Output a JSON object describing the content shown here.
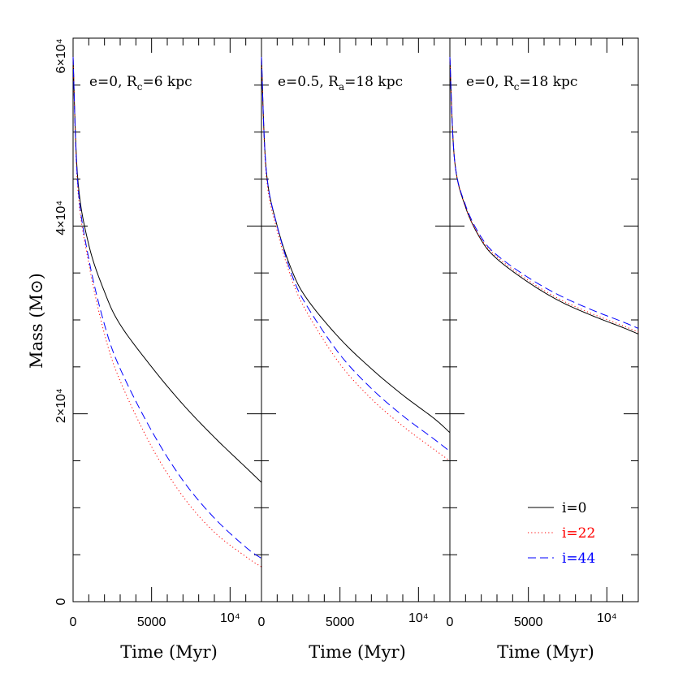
{
  "chart_data": {
    "type": "line",
    "ylabel": "Mass (M⊙)",
    "ylim": [
      0,
      60000
    ],
    "xlim": [
      0,
      12000
    ],
    "y_ticks": [
      {
        "value": 0,
        "label": "0"
      },
      {
        "value": 20000,
        "label": "2×10⁴"
      },
      {
        "value": 40000,
        "label": "4×10⁴"
      },
      {
        "value": 60000,
        "label": "6×10⁴"
      }
    ],
    "x_ticks": [
      {
        "value": 0,
        "label": "0"
      },
      {
        "value": 5000,
        "label": "5000"
      },
      {
        "value": 10000,
        "label": "10⁴"
      }
    ],
    "legend": {
      "placement": "bottom-right",
      "entries": [
        {
          "label": "i=0",
          "color": "#000000",
          "style": "solid"
        },
        {
          "label": "i=22",
          "color": "#ff0000",
          "style": "dotted"
        },
        {
          "label": "i=44",
          "color": "#0000ff",
          "style": "dashed"
        }
      ]
    },
    "panels": [
      {
        "label_main": "e=0, R",
        "label_sub": "c",
        "label_tail": "=6 kpc",
        "xlabel": "Time (Myr)",
        "series": [
          {
            "name": "i=0",
            "x": [
              0,
              300,
              1000,
              2000,
              3000,
              5000,
              7000,
              9000,
              11000,
              12000
            ],
            "y": [
              58000,
              45000,
              38000,
              33000,
              29500,
              25000,
              21000,
              17500,
              14300,
              12700
            ]
          },
          {
            "name": "i=22",
            "x": [
              0,
              300,
              1000,
              2000,
              3000,
              5000,
              7000,
              9000,
              11000,
              12000
            ],
            "y": [
              58000,
              44000,
              36000,
              28500,
              23500,
              16500,
              11200,
              7400,
              4800,
              3700
            ]
          },
          {
            "name": "i=44",
            "x": [
              0,
              300,
              1000,
              2000,
              3000,
              5000,
              7000,
              9000,
              11000,
              12000
            ],
            "y": [
              58000,
              44500,
              36500,
              29500,
              24800,
              18200,
              12900,
              8900,
              5800,
              4600
            ]
          }
        ]
      },
      {
        "label_main": "e=0.5, R",
        "label_sub": "a",
        "label_tail": "=18 kpc",
        "xlabel": "Time (Myr)",
        "series": [
          {
            "name": "i=0",
            "x": [
              0,
              300,
              1000,
              2000,
              3000,
              5000,
              7000,
              9000,
              11000,
              12000
            ],
            "y": [
              58000,
              46000,
              40000,
              35000,
              32000,
              28000,
              24800,
              22000,
              19500,
              18000
            ]
          },
          {
            "name": "i=22",
            "x": [
              0,
              300,
              1000,
              2000,
              3000,
              5000,
              7000,
              9000,
              11000,
              12000
            ],
            "y": [
              58000,
              45500,
              39500,
              34000,
              30500,
              25300,
              21600,
              18700,
              16200,
              15000
            ]
          },
          {
            "name": "i=44",
            "x": [
              0,
              300,
              1000,
              2000,
              3000,
              5000,
              7000,
              9000,
              11000,
              12000
            ],
            "y": [
              58000,
              46000,
              40000,
              34500,
              31200,
              26300,
              22700,
              19800,
              17300,
              16000
            ]
          }
        ]
      },
      {
        "label_main": "e=0, R",
        "label_sub": "c",
        "label_tail": "=18 kpc",
        "xlabel": "Time (Myr)",
        "series": [
          {
            "name": "i=0",
            "x": [
              0,
              300,
              1000,
              2000,
              3000,
              5000,
              7000,
              9000,
              11000,
              12000
            ],
            "y": [
              58000,
              47000,
              42000,
              38500,
              36500,
              34000,
              32000,
              30500,
              29200,
              28500
            ]
          },
          {
            "name": "i=22",
            "x": [
              0,
              300,
              1000,
              2000,
              3000,
              5000,
              7000,
              9000,
              11000,
              12000
            ],
            "y": [
              58000,
              47000,
              42000,
              38600,
              36700,
              34200,
              32200,
              30700,
              29400,
              28700
            ]
          },
          {
            "name": "i=44",
            "x": [
              0,
              300,
              1000,
              2000,
              3000,
              5000,
              7000,
              9000,
              11000,
              12000
            ],
            "y": [
              58000,
              47000,
              42200,
              38800,
              36900,
              34500,
              32600,
              31100,
              29800,
              29100
            ]
          }
        ]
      }
    ]
  }
}
